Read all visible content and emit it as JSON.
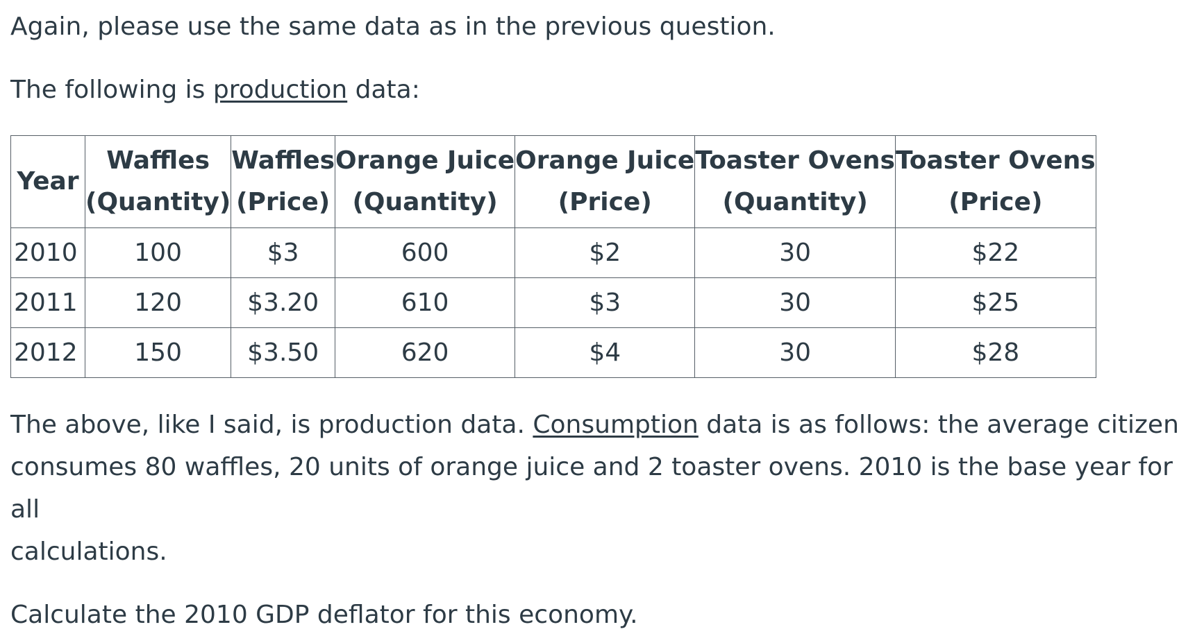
{
  "intro": "Again, please use the same data as in the previous question.",
  "lead": {
    "before": "The following is ",
    "underlined": "production",
    "after": " data:"
  },
  "table": {
    "headers": [
      {
        "line1": "Year",
        "line2": ""
      },
      {
        "line1": "Waffles",
        "line2": "(Quantity)"
      },
      {
        "line1": "Waffles",
        "line2": "(Price)"
      },
      {
        "line1": "Orange Juice",
        "line2": "(Quantity)"
      },
      {
        "line1": "Orange Juice",
        "line2": "(Price)"
      },
      {
        "line1": "Toaster Ovens",
        "line2": "(Quantity)"
      },
      {
        "line1": "Toaster Ovens",
        "line2": "(Price)"
      }
    ],
    "rows": [
      [
        "2010",
        "100",
        "$3",
        "600",
        "$2",
        "30",
        "$22"
      ],
      [
        "2011",
        "120",
        "$3.20",
        "610",
        "$3",
        "30",
        "$25"
      ],
      [
        "2012",
        "150",
        "$3.50",
        "620",
        "$4",
        "30",
        "$28"
      ]
    ]
  },
  "after": {
    "before": "The above, like I said, is production data.  ",
    "underlined": "Consumption",
    "line1_rest": " data is as follows: the average citizen",
    "line2": "consumes 80 waffles, 20 units of orange juice and 2 toaster ovens.  2010 is the base year for all",
    "line3": "calculations."
  },
  "question": "Calculate the 2010 GDP deflator for this economy."
}
